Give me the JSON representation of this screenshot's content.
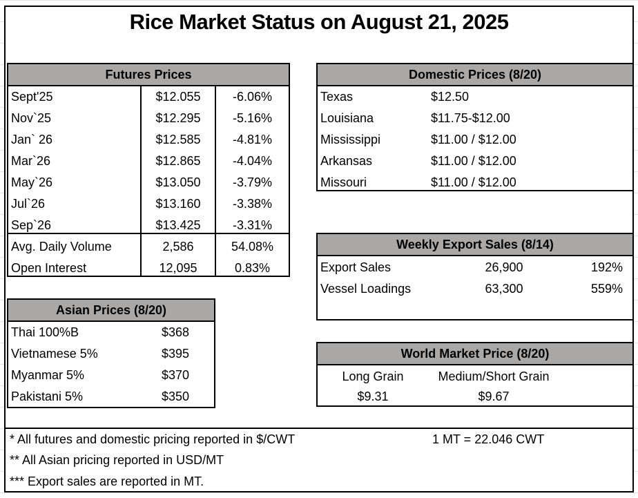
{
  "title": "Rice Market Status on August 21, 2025",
  "futures": {
    "header": "Futures Prices",
    "rows": [
      {
        "label": "Sept'25",
        "price": "$12.055",
        "change": "-6.06%"
      },
      {
        "label": "Nov`25",
        "price": "$12.295",
        "change": "-5.16%"
      },
      {
        "label": "Jan` 26",
        "price": "$12.585",
        "change": "-4.81%"
      },
      {
        "label": "Mar`26",
        "price": "$12.865",
        "change": "-4.04%"
      },
      {
        "label": "May`26",
        "price": "$13.050",
        "change": "-3.79%"
      },
      {
        "label": "Jul`26",
        "price": "$13.160",
        "change": "-3.38%"
      },
      {
        "label": "Sep`26",
        "price": "$13.425",
        "change": "-3.31%"
      },
      {
        "label": "Avg. Daily Volume",
        "price": "2,586",
        "change": "54.08%"
      },
      {
        "label": "Open Interest",
        "price": "12,095",
        "change": "0.83%"
      }
    ]
  },
  "domestic": {
    "header": "Domestic Prices (8/20)",
    "rows": [
      {
        "label": "Texas",
        "price": "$12.50"
      },
      {
        "label": "Louisiana",
        "price": "$11.75-$12.00"
      },
      {
        "label": "Mississippi",
        "price": "$11.00 / $12.00"
      },
      {
        "label": "Arkansas",
        "price": "$11.00 / $12.00"
      },
      {
        "label": "Missouri",
        "price": "$11.00 / $12.00"
      }
    ]
  },
  "asian": {
    "header": "Asian Prices (8/20)",
    "rows": [
      {
        "label": "Thai 100%B",
        "price": "$368"
      },
      {
        "label": "Vietnamese 5%",
        "price": "$395"
      },
      {
        "label": "Myanmar 5%",
        "price": "$370"
      },
      {
        "label": "Pakistani 5%",
        "price": "$350"
      }
    ]
  },
  "export": {
    "header": "Weekly Export Sales (8/14)",
    "rows": [
      {
        "label": "Export Sales",
        "value": "26,900",
        "pct": "192%"
      },
      {
        "label": "Vessel Loadings",
        "value": "63,300",
        "pct": "559%"
      }
    ]
  },
  "world": {
    "header": "World Market Price (8/20)",
    "long_label": "Long Grain",
    "long_price": "$9.31",
    "medium_label": "Medium/Short Grain",
    "medium_price": "$9.67"
  },
  "notes": {
    "n1": "* All futures and domestic pricing reported in $/CWT",
    "conversion": "1 MT = 22.046 CWT",
    "n2": "** All Asian pricing reported in USD/MT",
    "n3": "*** Export sales are reported in MT."
  },
  "colors": {
    "header_bg": "#aaa8a6",
    "border": "#000000"
  }
}
